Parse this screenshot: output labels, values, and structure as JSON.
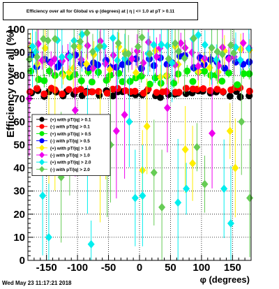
{
  "footer": {
    "timestamp": "Wed May 23 11:17:21 2018"
  },
  "chart_data": {
    "type": "scatter",
    "title": "Efficiency over all for Global vs φ (degrees) at | η | <= 1.0 at pT > 0.11",
    "xlabel": "φ (degrees)",
    "ylabel": "Efficiency over all (%)",
    "xlim": [
      -180,
      180
    ],
    "ylim": [
      0,
      100
    ],
    "xticks": [
      -150,
      -100,
      -50,
      0,
      50,
      100,
      150
    ],
    "yticks": [
      0,
      10,
      20,
      30,
      40,
      50,
      60,
      70,
      80,
      90,
      100
    ],
    "grid": true,
    "legend_position": "left-center",
    "series": [
      {
        "name": "(+) with pT/|q| > 0.1",
        "color": "#000000",
        "marker": "circle",
        "base": 72,
        "spread": 1.5,
        "err": 1.2
      },
      {
        "name": "(-) with pT/|q| > 0.1",
        "color": "#ff0000",
        "marker": "circle",
        "base": 73.5,
        "spread": 1.5,
        "err": 1.2
      },
      {
        "name": "(+) with pT/|q| > 0.5",
        "color": "#00ee00",
        "marker": "circle",
        "base": 79,
        "spread": 3,
        "err": 2
      },
      {
        "name": "(-) with pT/|q| > 0.5",
        "color": "#0000ff",
        "marker": "circle",
        "base": 86,
        "spread": 3,
        "err": 2.5
      },
      {
        "name": "(+) with pT/|q| > 1.0",
        "color": "#ffee00",
        "marker": "diamond",
        "base": 86,
        "spread": 7,
        "err": 6,
        "outliers": [
          47,
          58,
          42,
          40,
          57,
          45,
          39,
          48,
          56,
          50
        ]
      },
      {
        "name": "(-) with pT/|q| > 1.0",
        "color": "#ee00ee",
        "marker": "diamond",
        "base": 89,
        "spread": 6,
        "err": 6,
        "outliers": [
          63,
          66,
          55,
          70,
          65,
          56
        ]
      },
      {
        "name": "(+) with pT/|q| > 2.0",
        "color": "#00eeee",
        "marker": "diamond",
        "base": 92,
        "spread": 7,
        "err": 12,
        "outliers": [
          28,
          31,
          16,
          10,
          7,
          27,
          25,
          31,
          28,
          48,
          60
        ]
      },
      {
        "name": "(-) with pT/|q| > 2.0",
        "color": "#66cc55",
        "marker": "diamond",
        "base": 93,
        "spread": 6,
        "err": 12,
        "outliers": [
          23,
          33,
          27,
          44,
          50,
          38,
          49,
          60,
          36,
          40
        ]
      }
    ],
    "x_points": [
      -175,
      -165,
      -155,
      -145,
      -135,
      -125,
      -115,
      -105,
      -95,
      -85,
      -75,
      -65,
      -55,
      -45,
      -35,
      -25,
      -15,
      -5,
      5,
      15,
      25,
      35,
      45,
      55,
      65,
      75,
      85,
      95,
      105,
      115,
      125,
      135,
      145,
      155,
      165,
      175
    ]
  }
}
